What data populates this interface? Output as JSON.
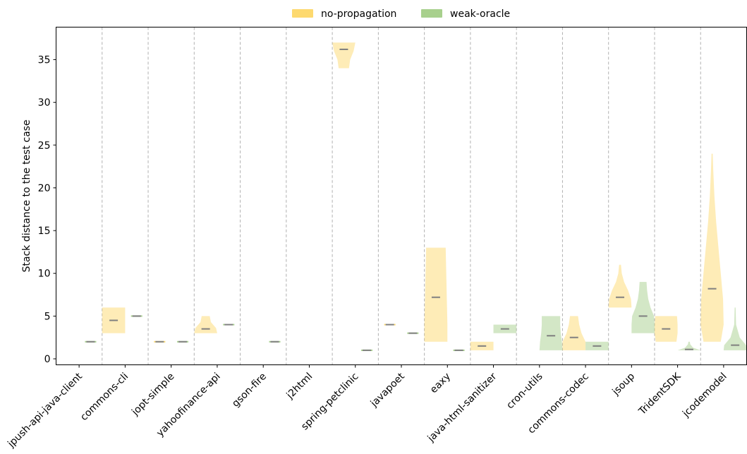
{
  "colors": {
    "no_propagation": "#fdd96f",
    "weak_oracle": "#a8d08d",
    "median": "#7f7f7f",
    "separator": "#b0b0b0"
  },
  "chart_data": {
    "type": "violin",
    "title": "",
    "xlabel": "",
    "ylabel": "Stack distance to the test case",
    "ylim": [
      -0.7,
      38.8
    ],
    "yticks": [
      0,
      5,
      10,
      15,
      20,
      25,
      30,
      35
    ],
    "grid": false,
    "legend": {
      "placement": "top-center",
      "entries": [
        {
          "key": "no_propagation",
          "label": "no-propagation"
        },
        {
          "key": "weak_oracle",
          "label": "weak-oracle"
        }
      ]
    },
    "categories": [
      "jpush-api-java-client",
      "commons-cli",
      "jopt-simple",
      "yahoofinance-api",
      "gson-fire",
      "j2html",
      "spring-petclinic",
      "javapoet",
      "eaxy",
      "java-html-sanitizer",
      "cron-utils",
      "commons-codec",
      "jsoup",
      "TridentSDK",
      "jcodemodel"
    ],
    "series": [
      {
        "name": "no-propagation",
        "key": "no_propagation",
        "opacity": 0.5,
        "data": [
          null,
          {
            "min": 3,
            "max": 6,
            "median": 4.5,
            "profile": [
              [
                3,
                1
              ],
              [
                4,
                1
              ],
              [
                5,
                1
              ],
              [
                6,
                1
              ]
            ]
          },
          {
            "min": 2,
            "max": 2,
            "median": 2
          },
          {
            "min": 3,
            "max": 5,
            "median": 3.5,
            "profile": [
              [
                3,
                1
              ],
              [
                3.6,
                0.9
              ],
              [
                4.3,
                0.45
              ],
              [
                5,
                0.35
              ]
            ]
          },
          null,
          null,
          {
            "min": 34,
            "max": 37,
            "median": 36.2,
            "profile": [
              [
                34,
                0.45
              ],
              [
                35,
                0.55
              ],
              [
                36,
                0.85
              ],
              [
                37,
                1
              ]
            ]
          },
          {
            "min": 4,
            "max": 4,
            "median": 4
          },
          {
            "min": 2,
            "max": 13,
            "median": 7.2,
            "profile": [
              [
                2,
                1
              ],
              [
                4,
                1
              ],
              [
                7,
                0.95
              ],
              [
                10,
                0.9
              ],
              [
                13,
                0.85
              ]
            ]
          },
          {
            "min": 1,
            "max": 2,
            "median": 1.5,
            "profile": [
              [
                1,
                1
              ],
              [
                1.5,
                1
              ],
              [
                2,
                1
              ]
            ]
          },
          null,
          {
            "min": 1,
            "max": 5,
            "median": 2.5,
            "profile": [
              [
                1,
                1
              ],
              [
                2,
                1
              ],
              [
                3,
                0.65
              ],
              [
                4,
                0.45
              ],
              [
                5,
                0.35
              ]
            ]
          },
          {
            "min": 6,
            "max": 11,
            "median": 7.2,
            "profile": [
              [
                6,
                1
              ],
              [
                7,
                0.95
              ],
              [
                8,
                0.7
              ],
              [
                9,
                0.35
              ],
              [
                10,
                0.15
              ],
              [
                11,
                0.08
              ]
            ]
          },
          {
            "min": 2,
            "max": 5,
            "median": 3.5,
            "profile": [
              [
                2,
                0.9
              ],
              [
                3,
                1
              ],
              [
                4,
                1
              ],
              [
                5,
                0.95
              ]
            ]
          },
          {
            "min": 2,
            "max": 24,
            "median": 8.2,
            "profile": [
              [
                2,
                0.75
              ],
              [
                4,
                1
              ],
              [
                7,
                0.95
              ],
              [
                10,
                0.75
              ],
              [
                13,
                0.55
              ],
              [
                16,
                0.35
              ],
              [
                19,
                0.2
              ],
              [
                22,
                0.1
              ],
              [
                24,
                0.05
              ]
            ]
          }
        ]
      },
      {
        "name": "weak-oracle",
        "key": "weak_oracle",
        "opacity": 0.5,
        "data": [
          {
            "min": 2,
            "max": 2,
            "median": 2
          },
          {
            "min": 5,
            "max": 5,
            "median": 5
          },
          {
            "min": 2,
            "max": 2,
            "median": 2
          },
          {
            "min": 4,
            "max": 4,
            "median": 4
          },
          {
            "min": 2,
            "max": 2,
            "median": 2
          },
          null,
          {
            "min": 1,
            "max": 1,
            "median": 1
          },
          {
            "min": 3,
            "max": 3,
            "median": 3
          },
          {
            "min": 1,
            "max": 1,
            "median": 1
          },
          {
            "min": 3,
            "max": 4,
            "median": 3.5,
            "profile": [
              [
                3,
                1
              ],
              [
                4,
                1
              ]
            ]
          },
          {
            "min": 1,
            "max": 5,
            "median": 2.7,
            "profile": [
              [
                1,
                1
              ],
              [
                2,
                0.95
              ],
              [
                3,
                0.85
              ],
              [
                4,
                0.8
              ],
              [
                5,
                0.8
              ]
            ]
          },
          {
            "min": 1,
            "max": 2,
            "median": 1.5,
            "profile": [
              [
                1,
                1
              ],
              [
                2,
                1
              ]
            ]
          },
          {
            "min": 3,
            "max": 9,
            "median": 5,
            "profile": [
              [
                3,
                1
              ],
              [
                4,
                1
              ],
              [
                5,
                0.95
              ],
              [
                6,
                0.65
              ],
              [
                7,
                0.45
              ],
              [
                8,
                0.35
              ],
              [
                9,
                0.3
              ]
            ]
          },
          {
            "min": 1,
            "max": 2,
            "median": 1.1,
            "profile": [
              [
                1,
                1
              ],
              [
                1.3,
                0.35
              ],
              [
                1.7,
                0.1
              ],
              [
                2,
                0.06
              ]
            ]
          },
          {
            "min": 1,
            "max": 6,
            "median": 1.6,
            "profile": [
              [
                1,
                1
              ],
              [
                1.6,
                0.95
              ],
              [
                2.5,
                0.4
              ],
              [
                4,
                0.08
              ],
              [
                6,
                0.04
              ]
            ]
          }
        ]
      }
    ]
  }
}
